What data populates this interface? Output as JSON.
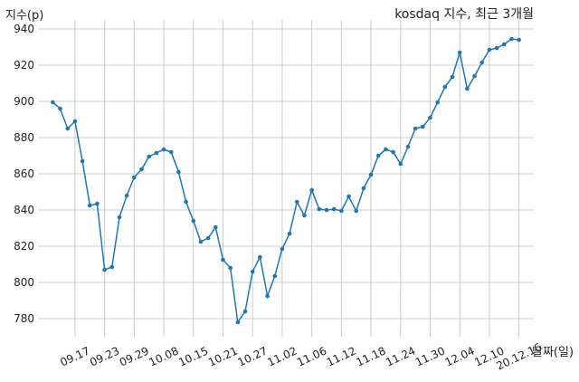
{
  "chart_data": {
    "type": "line",
    "title": "kosdaq 지수, 최근 3개월",
    "xlabel": "날짜(일)",
    "ylabel": "지수(p)",
    "ylim": [
      770,
      945
    ],
    "yticks": [
      780,
      800,
      820,
      840,
      860,
      880,
      900,
      920,
      940
    ],
    "grid": true,
    "xtick_labels": [
      "09.17",
      "09.23",
      "09.29",
      "10.08",
      "10.15",
      "10.21",
      "10.27",
      "11.02",
      "11.06",
      "11.12",
      "11.18",
      "11.24",
      "11.30",
      "12.04",
      "12.10",
      "20.12.16"
    ],
    "xtick_positions": [
      3,
      7,
      11,
      15,
      19,
      23,
      27,
      31,
      35,
      39,
      43,
      47,
      51,
      55,
      59,
      63
    ],
    "series": [
      {
        "color": "#1f77b4",
        "x": [
          0,
          1,
          2,
          3,
          4,
          5,
          6,
          7,
          8,
          9,
          10,
          11,
          12,
          13,
          14,
          15,
          16,
          17,
          18,
          19,
          20,
          21,
          22,
          23,
          24,
          25,
          26,
          27,
          28,
          29,
          30,
          31,
          32,
          33,
          34,
          35,
          36,
          37,
          38,
          39,
          40,
          41,
          42,
          43,
          44,
          45,
          46,
          47,
          48,
          49,
          50,
          51,
          52,
          53,
          54,
          55,
          56,
          57,
          58,
          59,
          60,
          61,
          62,
          63
        ],
        "values": [
          899.5,
          896,
          885,
          889,
          867,
          842.5,
          843.5,
          807,
          808.5,
          836,
          848,
          858,
          862.5,
          869.5,
          871.5,
          873.5,
          872,
          861,
          844.5,
          834,
          822.5,
          824.5,
          830.5,
          812.5,
          808,
          778,
          784,
          806,
          814,
          792.5,
          803.5,
          818.5,
          827,
          844.5,
          837,
          851,
          840.5,
          840,
          840.5,
          839.5,
          847.5,
          839.5,
          852,
          859.5,
          870,
          873.5,
          872,
          865.5,
          875,
          885,
          886,
          891,
          899.5,
          908,
          913.5,
          927,
          907,
          914,
          921.5,
          928.5,
          929.5,
          931.5,
          934.5,
          934
        ]
      }
    ]
  }
}
